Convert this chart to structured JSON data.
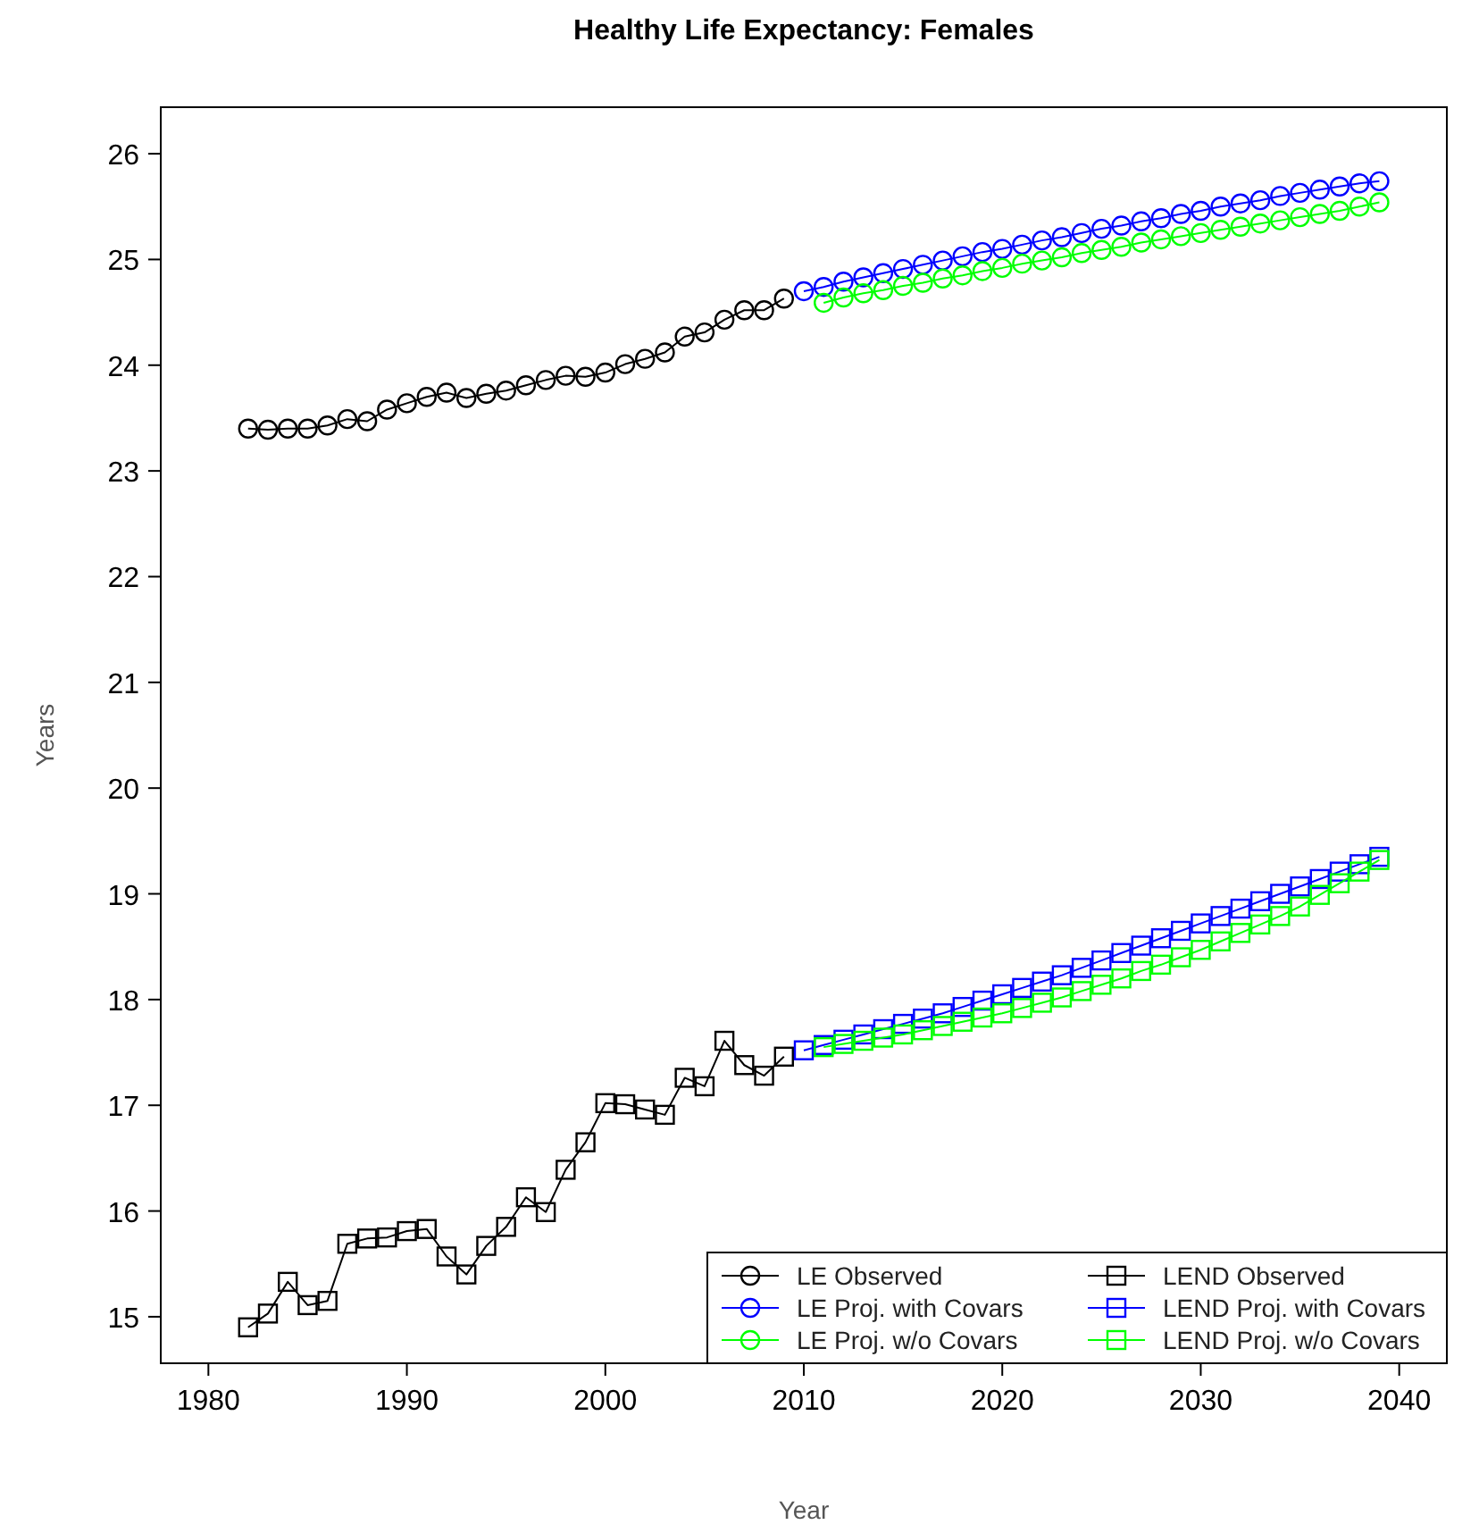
{
  "chart_data": {
    "type": "line",
    "title": "Healthy Life Expectancy: Females",
    "xlabel": "Year",
    "ylabel": "Years",
    "xlim": [
      1977.6,
      2042.4
    ],
    "xticks": [
      1980,
      1990,
      2000,
      2010,
      2020,
      2030,
      2040
    ],
    "ylim": [
      14.56,
      26.44
    ],
    "yticks": [
      15,
      16,
      17,
      18,
      19,
      20,
      21,
      22,
      23,
      24,
      25,
      26
    ],
    "grid": false,
    "legend": "bottom right",
    "line_style": "solid",
    "series": [
      {
        "name": "LE Observed",
        "color": "#000000",
        "marker": "circle",
        "x": [
          1982,
          1983,
          1984,
          1985,
          1986,
          1987,
          1988,
          1989,
          1990,
          1991,
          1992,
          1993,
          1994,
          1995,
          1996,
          1997,
          1998,
          1999,
          2000,
          2001,
          2002,
          2003,
          2004,
          2005,
          2006,
          2007,
          2008,
          2009
        ],
        "values": [
          23.4,
          23.39,
          23.4,
          23.4,
          23.43,
          23.49,
          23.47,
          23.58,
          23.64,
          23.7,
          23.74,
          23.69,
          23.73,
          23.76,
          23.81,
          23.86,
          23.9,
          23.89,
          23.93,
          24.01,
          24.06,
          24.12,
          24.27,
          24.31,
          24.43,
          24.52,
          24.52,
          24.63
        ]
      },
      {
        "name": "LE Proj. with Covars",
        "color": "#0000ff",
        "marker": "circle",
        "x": [
          2010,
          2011,
          2012,
          2013,
          2014,
          2015,
          2016,
          2017,
          2018,
          2019,
          2020,
          2021,
          2022,
          2023,
          2024,
          2025,
          2026,
          2027,
          2028,
          2029,
          2030,
          2031,
          2032,
          2033,
          2034,
          2035,
          2036,
          2037,
          2038,
          2039
        ],
        "values": [
          24.7,
          24.74,
          24.79,
          24.83,
          24.87,
          24.91,
          24.95,
          24.99,
          25.03,
          25.07,
          25.1,
          25.14,
          25.18,
          25.21,
          25.25,
          25.29,
          25.32,
          25.36,
          25.39,
          25.43,
          25.46,
          25.5,
          25.53,
          25.56,
          25.6,
          25.63,
          25.66,
          25.69,
          25.72,
          25.74
        ]
      },
      {
        "name": "LE Proj. w/o Covars",
        "color": "#00ff00",
        "marker": "circle",
        "x": [
          2011,
          2012,
          2013,
          2014,
          2015,
          2016,
          2017,
          2018,
          2019,
          2020,
          2021,
          2022,
          2023,
          2024,
          2025,
          2026,
          2027,
          2028,
          2029,
          2030,
          2031,
          2032,
          2033,
          2034,
          2035,
          2036,
          2037,
          2038,
          2039
        ],
        "values": [
          24.59,
          24.64,
          24.68,
          24.71,
          24.75,
          24.78,
          24.82,
          24.85,
          24.89,
          24.92,
          24.96,
          24.99,
          25.02,
          25.06,
          25.09,
          25.12,
          25.16,
          25.19,
          25.22,
          25.25,
          25.28,
          25.31,
          25.34,
          25.37,
          25.4,
          25.43,
          25.46,
          25.5,
          25.54
        ]
      },
      {
        "name": "LEND Observed",
        "color": "#000000",
        "marker": "square",
        "x": [
          1982,
          1983,
          1984,
          1985,
          1986,
          1987,
          1988,
          1989,
          1990,
          1991,
          1992,
          1993,
          1994,
          1995,
          1996,
          1997,
          1998,
          1999,
          2000,
          2001,
          2002,
          2003,
          2004,
          2005,
          2006,
          2007,
          2008,
          2009
        ],
        "values": [
          14.9,
          15.03,
          15.33,
          15.11,
          15.15,
          15.69,
          15.74,
          15.75,
          15.81,
          15.83,
          15.57,
          15.4,
          15.67,
          15.85,
          16.13,
          15.99,
          16.39,
          16.65,
          17.02,
          17.01,
          16.96,
          16.91,
          17.26,
          17.18,
          17.61,
          17.38,
          17.28,
          17.46
        ]
      },
      {
        "name": "LEND Proj. with Covars",
        "color": "#0000ff",
        "marker": "square",
        "x": [
          2010,
          2011,
          2012,
          2013,
          2014,
          2015,
          2016,
          2017,
          2018,
          2019,
          2020,
          2021,
          2022,
          2023,
          2024,
          2025,
          2026,
          2027,
          2028,
          2029,
          2030,
          2031,
          2032,
          2033,
          2034,
          2035,
          2036,
          2037,
          2038,
          2039
        ],
        "values": [
          17.52,
          17.57,
          17.62,
          17.67,
          17.72,
          17.77,
          17.82,
          17.87,
          17.93,
          17.99,
          18.05,
          18.11,
          18.17,
          18.23,
          18.3,
          18.37,
          18.44,
          18.51,
          18.58,
          18.65,
          18.72,
          18.79,
          18.86,
          18.93,
          19.0,
          19.07,
          19.14,
          19.21,
          19.28,
          19.35
        ]
      },
      {
        "name": "LEND Proj. w/o Covars",
        "color": "#00ff00",
        "marker": "square",
        "x": [
          2011,
          2012,
          2013,
          2014,
          2015,
          2016,
          2017,
          2018,
          2019,
          2020,
          2021,
          2022,
          2023,
          2024,
          2025,
          2026,
          2027,
          2028,
          2029,
          2030,
          2031,
          2032,
          2033,
          2034,
          2035,
          2036,
          2037,
          2038,
          2039
        ],
        "values": [
          17.55,
          17.58,
          17.61,
          17.64,
          17.67,
          17.71,
          17.75,
          17.79,
          17.83,
          17.87,
          17.92,
          17.97,
          18.02,
          18.08,
          18.14,
          18.2,
          18.27,
          18.33,
          18.4,
          18.47,
          18.55,
          18.63,
          18.71,
          18.79,
          18.88,
          18.99,
          19.1,
          19.21,
          19.32
        ]
      }
    ]
  }
}
